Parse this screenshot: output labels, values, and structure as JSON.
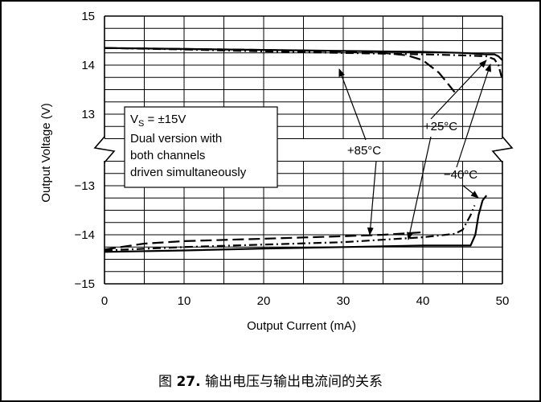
{
  "caption": {
    "prefix": "图",
    "number": "27.",
    "text": "输出电压与输出电流间的关系"
  },
  "chart_data": {
    "type": "line",
    "xlabel": "Output Current (mA)",
    "ylabel": "Output Voltage (V)",
    "xlim": [
      0,
      50
    ],
    "x_ticks": [
      0,
      10,
      20,
      30,
      40,
      50
    ],
    "x_tick_labels": [
      "0",
      "10",
      "20",
      "30",
      "40",
      "50"
    ],
    "y_upper_range": [
      12.5,
      15
    ],
    "y_lower_range": [
      -15,
      -12.5
    ],
    "y_tick_labels_upper": [
      "15",
      "14",
      "13"
    ],
    "y_tick_labels_lower": [
      "−13",
      "−14",
      "−15"
    ],
    "axis_break": "between 13 and −13",
    "grid": true,
    "annotation": {
      "lines": [
        "V",
        "S",
        " = ±15V",
        "Dual version with",
        "both channels",
        "driven simultaneously"
      ]
    },
    "series": [
      {
        "name": "+85°C",
        "style": "dash",
        "positive": {
          "x": [
            0,
            10,
            20,
            30,
            35,
            38,
            40,
            42,
            43,
            44
          ],
          "y": [
            14.35,
            14.33,
            14.31,
            14.28,
            14.25,
            14.2,
            14.1,
            13.85,
            13.65,
            13.45
          ]
        },
        "negative": {
          "x": [
            0,
            5,
            10,
            20,
            30,
            35,
            38,
            40
          ],
          "y": [
            -14.3,
            -14.18,
            -14.13,
            -14.08,
            -14.03,
            -14.0,
            -13.97,
            -13.95
          ]
        }
      },
      {
        "name": "+25°C",
        "style": "dash-dot",
        "positive": {
          "x": [
            0,
            10,
            20,
            30,
            40,
            45,
            48,
            49,
            49.5,
            50
          ],
          "y": [
            14.35,
            14.32,
            14.28,
            14.25,
            14.22,
            14.2,
            14.18,
            14.12,
            14.0,
            13.7
          ]
        },
        "negative": {
          "x": [
            0,
            10,
            20,
            30,
            40,
            44,
            45,
            46,
            46.5
          ],
          "y": [
            -14.32,
            -14.25,
            -14.2,
            -14.15,
            -14.05,
            -13.98,
            -13.9,
            -13.6,
            -13.4
          ]
        }
      },
      {
        "name": "−40°C",
        "style": "solid",
        "positive": {
          "x": [
            0,
            10,
            20,
            30,
            40,
            45,
            48,
            49,
            49.5,
            50
          ],
          "y": [
            14.35,
            14.33,
            14.31,
            14.29,
            14.27,
            14.25,
            14.22,
            14.22,
            14.18,
            14.1
          ]
        },
        "negative": {
          "x": [
            0,
            10,
            20,
            30,
            40,
            46,
            46.6,
            47,
            47.5,
            48
          ],
          "y": [
            -14.35,
            -14.32,
            -14.28,
            -14.25,
            -14.22,
            -14.22,
            -14.0,
            -13.6,
            -13.3,
            -13.2
          ]
        }
      }
    ],
    "labels": {
      "p85": "+85°C",
      "p25": "+25°C",
      "m40": "−40°C"
    },
    "colors": {
      "line": "#000000",
      "grid": "#000000",
      "background": "#ffffff"
    }
  }
}
